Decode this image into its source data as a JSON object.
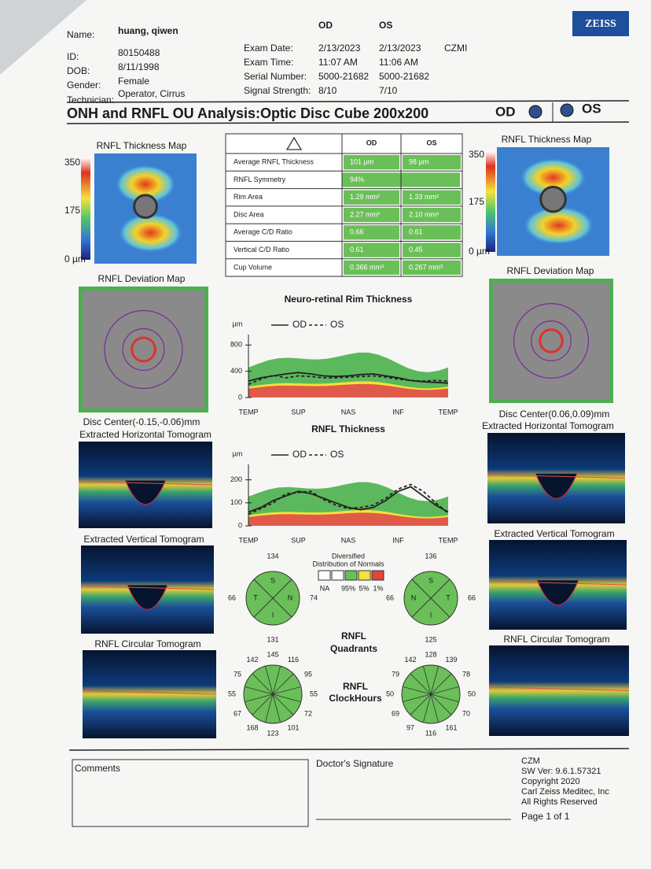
{
  "header": {
    "name_label": "Name:",
    "name": "huang, qiwen",
    "id_label": "ID:",
    "id": "80150488",
    "dob_label": "DOB:",
    "dob": "8/11/1998",
    "gender_label": "Gender:",
    "gender": "Female",
    "technician_label": "Technician:",
    "technician": "Operator, Cirrus",
    "logo": "ZEISS"
  },
  "exam": {
    "columns": [
      "OD",
      "OS"
    ],
    "site": "CZMI",
    "rows": [
      [
        "Exam Date:",
        "2/13/2023",
        "2/13/2023"
      ],
      [
        "Exam Time:",
        "11:07 AM",
        "11:06 AM"
      ],
      [
        "Serial Number:",
        "5000-21682",
        "5000-21682"
      ],
      [
        "Signal Strength:",
        "8/10",
        "7/10"
      ]
    ]
  },
  "title": {
    "text": "ONH and RNFL OU Analysis:Optic Disc Cube 200x200",
    "od": "OD",
    "os": "OS"
  },
  "table": {
    "columns": [
      "OD",
      "OS"
    ],
    "rows": [
      [
        "Average RNFL Thickness",
        "101 µm",
        "98 µm"
      ],
      [
        "RNFL Symmetry",
        "94%"
      ],
      [
        "Rim Area",
        "1.29 mm²",
        "1.33 mm²"
      ],
      [
        "Disc Area",
        "2.27 mm²",
        "2.10 mm²"
      ],
      [
        "Average C/D Ratio",
        "0.66",
        "0.61"
      ],
      [
        "Vertical C/D Ratio",
        "0.61",
        "0.45"
      ],
      [
        "Cup Volume",
        "0.366 mm³",
        "0.267 mm³"
      ]
    ]
  },
  "od": {
    "thickness_map": "RNFL Thickness Map",
    "scale": [
      "350",
      "175",
      "0 µm"
    ],
    "deviation_map": "RNFL Deviation Map",
    "disc_center": "Disc Center(-0.15,-0.06)mm",
    "horizontal_tomogram": "Extracted Horizontal Tomogram",
    "vertical_tomogram": "Extracted Vertical Tomogram",
    "circular_tomogram": "RNFL Circular Tomogram",
    "quadrants": [
      {
        "label": "S",
        "value": 134
      },
      {
        "label": "T",
        "value": 66
      },
      {
        "label": "N",
        "value": 74
      },
      {
        "label": "I",
        "value": 131
      }
    ],
    "clock_hours": [
      145,
      116,
      95,
      55,
      72,
      101,
      123,
      168,
      67,
      55,
      75,
      142
    ]
  },
  "os": {
    "thickness_map": "RNFL Thickness Map",
    "scale": [
      "350",
      "175",
      "0 µm"
    ],
    "deviation_map": "RNFL Deviation Map",
    "disc_center": "Disc Center(0.06,0.09)mm",
    "horizontal_tomogram": "Extracted Horizontal Tomogram",
    "vertical_tomogram": "Extracted Vertical Tomogram",
    "circular_tomogram": "RNFL Circular Tomogram",
    "quadrants": [
      {
        "label": "S",
        "value": 136
      },
      {
        "label": "N",
        "value": 66
      },
      {
        "label": "T",
        "value": 66
      },
      {
        "label": "I",
        "value": 125
      }
    ],
    "clock_hours": [
      128,
      139,
      78,
      50,
      70,
      161,
      116,
      97,
      69,
      50,
      79,
      142
    ]
  },
  "chart_data": [
    {
      "type": "line",
      "title": "Neuro-retinal Rim Thickness",
      "y_label": "µm",
      "categories": [
        "TEMP",
        null,
        null,
        null,
        "SUP",
        null,
        null,
        null,
        "NAS",
        null,
        null,
        null,
        "INF",
        null,
        null,
        null,
        "TEMP"
      ],
      "series": [
        {
          "name": "OD",
          "color": "#222222",
          "line_style": "solid",
          "values": [
            250,
            300,
            330,
            360,
            380,
            360,
            330,
            320,
            330,
            350,
            360,
            330,
            300,
            260,
            240,
            230,
            220
          ]
        },
        {
          "name": "OS",
          "color": "#222222",
          "line_style": "dashed",
          "values": [
            200,
            280,
            340,
            300,
            330,
            320,
            300,
            300,
            310,
            320,
            330,
            310,
            280,
            260,
            250,
            260,
            250
          ]
        }
      ],
      "ylim": [
        0,
        900
      ],
      "yticks": [
        0,
        400,
        800
      ]
    },
    {
      "type": "line",
      "title": "RNFL Thickness",
      "y_label": "µm",
      "categories": [
        "TEMP",
        null,
        null,
        null,
        "SUP",
        null,
        null,
        null,
        "NAS",
        null,
        null,
        null,
        "INF",
        null,
        null,
        null,
        "TEMP"
      ],
      "series": [
        {
          "name": "OD",
          "color": "#222222",
          "line_style": "solid",
          "values": [
            60,
            80,
            110,
            130,
            150,
            140,
            120,
            100,
            80,
            70,
            80,
            110,
            150,
            170,
            130,
            90,
            60
          ]
        },
        {
          "name": "OS",
          "color": "#222222",
          "line_style": "dashed",
          "values": [
            50,
            75,
            100,
            140,
            145,
            150,
            115,
            90,
            75,
            80,
            90,
            120,
            160,
            180,
            150,
            100,
            55
          ]
        }
      ],
      "ylim": [
        0,
        250
      ],
      "yticks": [
        0,
        100,
        200
      ]
    }
  ],
  "normals": {
    "title": "Diversified",
    "subtitle": "Distribution of Normals",
    "labels": [
      "NA",
      "95%",
      "5%",
      "1%"
    ]
  },
  "quadrants_title": [
    "RNFL",
    "Quadrants"
  ],
  "clock_title": [
    "RNFL",
    "ClockHours"
  ],
  "footer": {
    "comments": "Comments",
    "signature": "Doctor's Signature",
    "info": [
      "CZM",
      "SW Ver: 9.6.1.57321",
      "Copyright 2020",
      "Carl Zeiss Meditec, Inc",
      "All Rights Reserved"
    ],
    "page": "Page 1 of 1"
  }
}
